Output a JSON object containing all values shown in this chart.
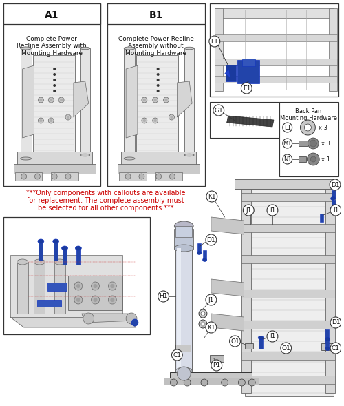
{
  "bg_color": "#ffffff",
  "warning_text_line1": "***Only components with callouts are available",
  "warning_text_line2": "for replacement. The complete assembly must",
  "warning_text_line3": "be selected for all other components.***",
  "warning_color": "#cc0000",
  "box_A1_label": "A1",
  "box_A1_desc": "Complete Power\nRecline Assembly with\nMounting Hardware",
  "box_B1_label": "B1",
  "box_B1_desc": "Complete Power Recline\nAssembly without\nMounting Hardware",
  "hardware_title": "Back Pan\nMounting Hardware",
  "line_color": "#666666",
  "dark_line": "#333333",
  "light_gray": "#e8e8e8",
  "mid_gray": "#cccccc",
  "dark_gray": "#888888",
  "blue_part": "#2244aa",
  "blue_part2": "#3355bb",
  "panel_bg": "#f2f2f2",
  "inset_bg": "#f5f5f5",
  "body_gray": "#d8d8d8",
  "accent_blue": "#1a3a9e",
  "sketch_line": "#aaaaaa"
}
